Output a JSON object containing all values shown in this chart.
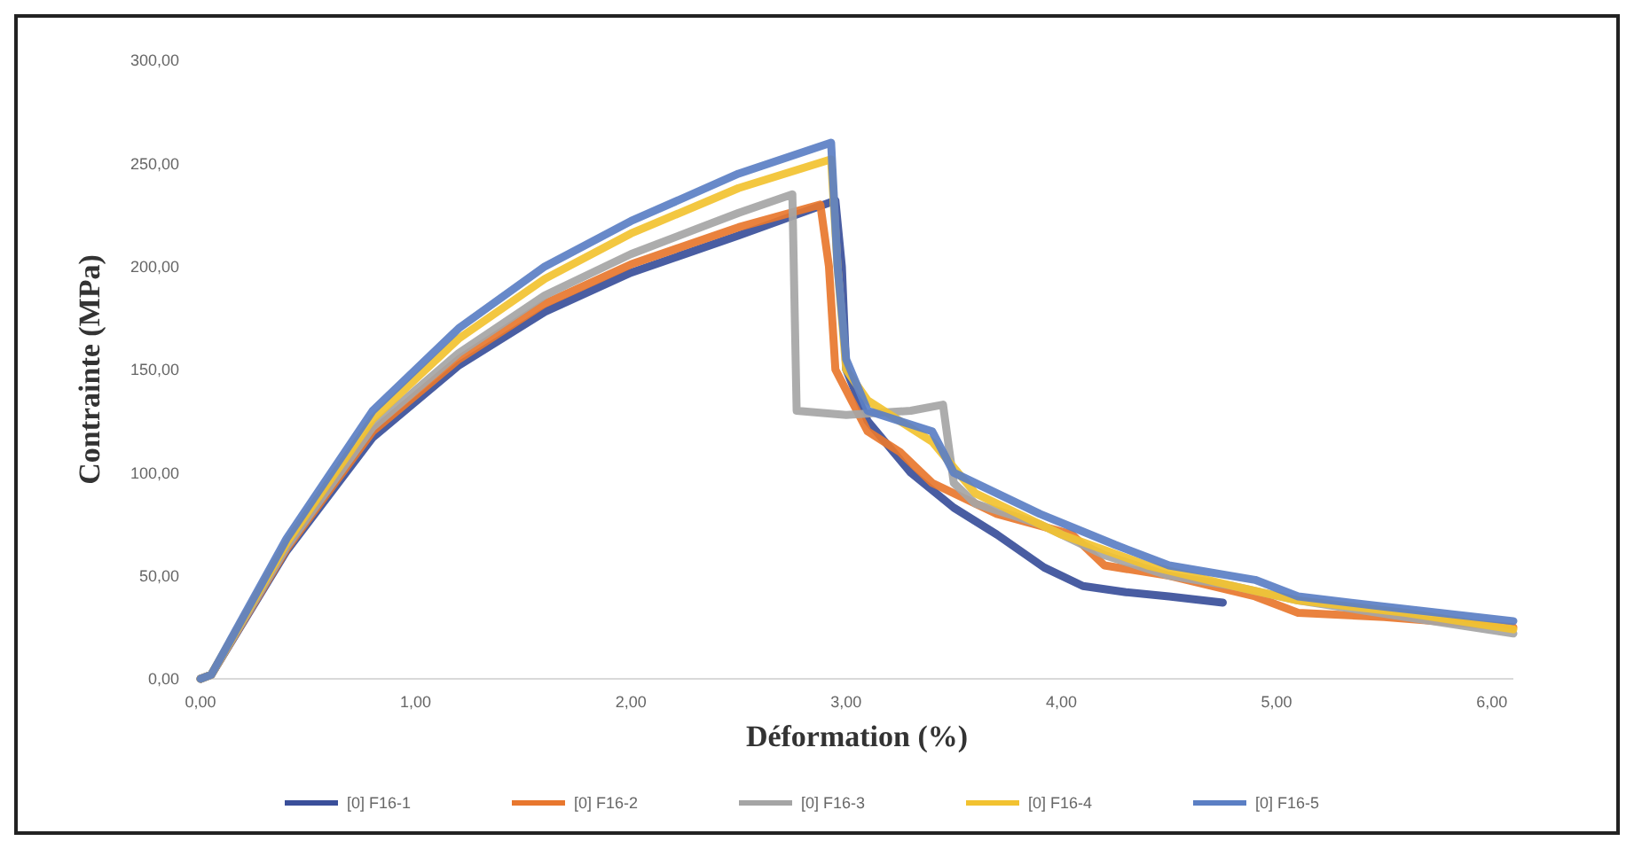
{
  "chart_data": {
    "type": "line",
    "xlabel": "Déformation (%)",
    "ylabel": "Contrainte (MPa)",
    "xlim": [
      0,
      6.1
    ],
    "ylim": [
      0,
      300
    ],
    "xticks": [
      {
        "value": 0,
        "label": "0,00"
      },
      {
        "value": 1,
        "label": "1,00"
      },
      {
        "value": 2,
        "label": "2,00"
      },
      {
        "value": 3,
        "label": "3,00"
      },
      {
        "value": 4,
        "label": "4,00"
      },
      {
        "value": 5,
        "label": "5,00"
      },
      {
        "value": 6,
        "label": "6,00"
      }
    ],
    "yticks": [
      {
        "value": 0,
        "label": "0,00"
      },
      {
        "value": 50,
        "label": "50,00"
      },
      {
        "value": 100,
        "label": "100,00"
      },
      {
        "value": 150,
        "label": "150,00"
      },
      {
        "value": 200,
        "label": "200,00"
      },
      {
        "value": 250,
        "label": "250,00"
      },
      {
        "value": 300,
        "label": "300,00"
      }
    ],
    "grid": false,
    "legend": "bottom",
    "marker": "none",
    "line_style": "solid",
    "series": [
      {
        "name": "[0] F16-1",
        "color": "#3a4f9a",
        "x": [
          0,
          0.05,
          0.4,
          0.8,
          1.2,
          1.6,
          2.0,
          2.5,
          2.95,
          2.98,
          3.0,
          3.1,
          3.3,
          3.5,
          3.7,
          3.92,
          4.1,
          4.3,
          4.5,
          4.75
        ],
        "values": [
          0,
          2,
          62,
          117,
          152,
          178,
          197,
          215,
          232,
          200,
          150,
          125,
          100,
          83,
          70,
          54,
          45,
          42,
          40,
          37
        ]
      },
      {
        "name": "[0] F16-2",
        "color": "#e8772e",
        "x": [
          0,
          0.05,
          0.4,
          0.8,
          1.2,
          1.6,
          2.0,
          2.5,
          2.88,
          2.92,
          2.95,
          3.1,
          3.25,
          3.4,
          3.7,
          4.05,
          4.2,
          4.5,
          4.9,
          5.1,
          5.5,
          6.1
        ],
        "values": [
          0,
          2,
          63,
          120,
          155,
          182,
          201,
          219,
          230,
          200,
          150,
          120,
          110,
          95,
          80,
          70,
          55,
          50,
          40,
          32,
          30,
          25
        ]
      },
      {
        "name": "[0] F16-3",
        "color": "#a5a5a5",
        "x": [
          0,
          0.05,
          0.4,
          0.8,
          1.2,
          1.6,
          2.0,
          2.5,
          2.75,
          2.77,
          3.0,
          3.3,
          3.45,
          3.5,
          3.6,
          3.9,
          4.2,
          4.5,
          4.8,
          5.1,
          5.6,
          6.1
        ],
        "values": [
          0,
          2,
          64,
          122,
          158,
          186,
          206,
          226,
          235,
          130,
          128,
          130,
          133,
          95,
          85,
          75,
          60,
          50,
          45,
          38,
          30,
          22
        ]
      },
      {
        "name": "[0] F16-4",
        "color": "#f2c230",
        "x": [
          0,
          0.05,
          0.4,
          0.8,
          1.2,
          1.6,
          2.0,
          2.5,
          2.93,
          2.96,
          3.0,
          3.1,
          3.4,
          3.6,
          4.0,
          4.4,
          4.8,
          5.1,
          5.6,
          6.1
        ],
        "values": [
          0,
          2,
          66,
          126,
          165,
          194,
          216,
          238,
          252,
          200,
          150,
          135,
          115,
          90,
          70,
          55,
          45,
          38,
          32,
          24
        ]
      },
      {
        "name": "[0] F16-5",
        "color": "#5b7fc4",
        "x": [
          0,
          0.05,
          0.4,
          0.8,
          1.2,
          1.6,
          2.0,
          2.5,
          2.93,
          2.96,
          3.0,
          3.1,
          3.4,
          3.5,
          3.9,
          4.25,
          4.5,
          4.9,
          5.1,
          5.5,
          6.1
        ],
        "values": [
          0,
          2,
          68,
          130,
          170,
          200,
          222,
          245,
          260,
          200,
          155,
          130,
          120,
          100,
          80,
          65,
          55,
          48,
          40,
          35,
          28
        ]
      }
    ]
  }
}
